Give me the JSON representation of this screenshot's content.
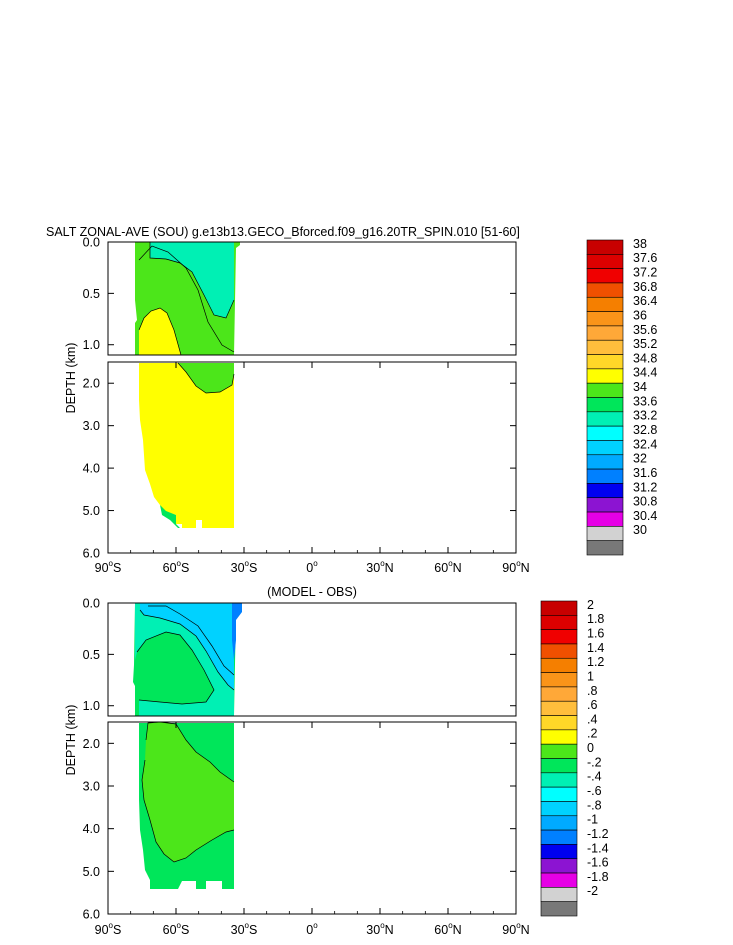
{
  "chart_data": [
    {
      "type": "heatmap",
      "title": "SALT ZONAL-AVE (SOU) g.e13b13.GECO_Bforced.f09_g16.20TR_SPIN.010 [51-60]",
      "ylabel": "DEPTH (km)",
      "xlabel": "",
      "upper_yticks": [
        "0.0",
        "0.5",
        "1.0"
      ],
      "lower_yticks": [
        "2.0",
        "3.0",
        "4.0",
        "5.0",
        "6.0"
      ],
      "xticks": [
        {
          "base": "90",
          "deg": "o",
          "suf": "S"
        },
        {
          "base": "60",
          "deg": "o",
          "suf": "S"
        },
        {
          "base": "30",
          "deg": "o",
          "suf": "S"
        },
        {
          "base": "0",
          "deg": "o",
          "suf": ""
        },
        {
          "base": "30",
          "deg": "o",
          "suf": "N"
        },
        {
          "base": "60",
          "deg": "o",
          "suf": "N"
        },
        {
          "base": "90",
          "deg": "o",
          "suf": "N"
        }
      ],
      "x_range": [
        -90,
        90
      ],
      "y_range_km": [
        0,
        6
      ],
      "data_lat_range": [
        -78,
        -33
      ],
      "colorbar_labels": [
        "38",
        "37.6",
        "37.2",
        "36.8",
        "36.4",
        "36",
        "35.6",
        "35.2",
        "34.8",
        "34.4",
        "34",
        "33.6",
        "33.2",
        "32.8",
        "32.4",
        "32",
        "31.6",
        "31.2",
        "30.8",
        "30.4",
        "30"
      ],
      "colorbar_colors": [
        "#c80000",
        "#dc0000",
        "#f00000",
        "#f05000",
        "#f57f00",
        "#fa9419",
        "#ffa838",
        "#ffbe3c",
        "#ffd728",
        "#ffff00",
        "#4ce61a",
        "#00e65a",
        "#00f0b4",
        "#00ffff",
        "#00d2ff",
        "#00aaff",
        "#0080ff",
        "#0000f0",
        "#8c14d2",
        "#e600e6",
        "#d2d2d2",
        "#787878"
      ],
      "regions": {
        "upper_bg": "#4ce61a",
        "upper_blob": "#00f0b4",
        "upper_bottom": "#ffff00",
        "lower_bg": "#ffff00",
        "lower_top": "#4ce61a",
        "lower_edge": "#00e65a"
      }
    },
    {
      "type": "heatmap",
      "title": "(MODEL - OBS)",
      "ylabel": "DEPTH (km)",
      "xlabel": "",
      "upper_yticks": [
        "0.0",
        "0.5",
        "1.0"
      ],
      "lower_yticks": [
        "2.0",
        "3.0",
        "4.0",
        "5.0",
        "6.0"
      ],
      "xticks": [
        {
          "base": "90",
          "deg": "o",
          "suf": "S"
        },
        {
          "base": "60",
          "deg": "o",
          "suf": "S"
        },
        {
          "base": "30",
          "deg": "o",
          "suf": "S"
        },
        {
          "base": "0",
          "deg": "o",
          "suf": ""
        },
        {
          "base": "30",
          "deg": "o",
          "suf": "N"
        },
        {
          "base": "60",
          "deg": "o",
          "suf": "N"
        },
        {
          "base": "90",
          "deg": "o",
          "suf": "N"
        }
      ],
      "x_range": [
        -90,
        90
      ],
      "y_range_km": [
        0,
        6
      ],
      "data_lat_range": [
        -78,
        -33
      ],
      "colorbar_labels": [
        "2",
        "1.8",
        "1.6",
        "1.4",
        "1.2",
        "1",
        ".8",
        ".6",
        ".4",
        ".2",
        "0",
        "-.2",
        "-.4",
        "-.6",
        "-.8",
        "-1",
        "-1.2",
        "-1.4",
        "-1.6",
        "-1.8",
        "-2"
      ],
      "colorbar_colors": [
        "#c80000",
        "#dc0000",
        "#f00000",
        "#f05000",
        "#f57f00",
        "#fa9419",
        "#ffa838",
        "#ffbe3c",
        "#ffd728",
        "#ffff00",
        "#4ce61a",
        "#00e65a",
        "#00f0b4",
        "#00ffff",
        "#00d2ff",
        "#00aaff",
        "#0080ff",
        "#0000f0",
        "#8c14d2",
        "#e600e6",
        "#d2d2d2",
        "#787878"
      ],
      "regions": {
        "upper_bg": "#00e65a",
        "upper_mid": "#00f0b4",
        "upper_blob": "#00d2ff",
        "upper_edge": "#0080ff",
        "lower_bg": "#00e65a",
        "lower_top": "#4ce61a"
      }
    }
  ]
}
